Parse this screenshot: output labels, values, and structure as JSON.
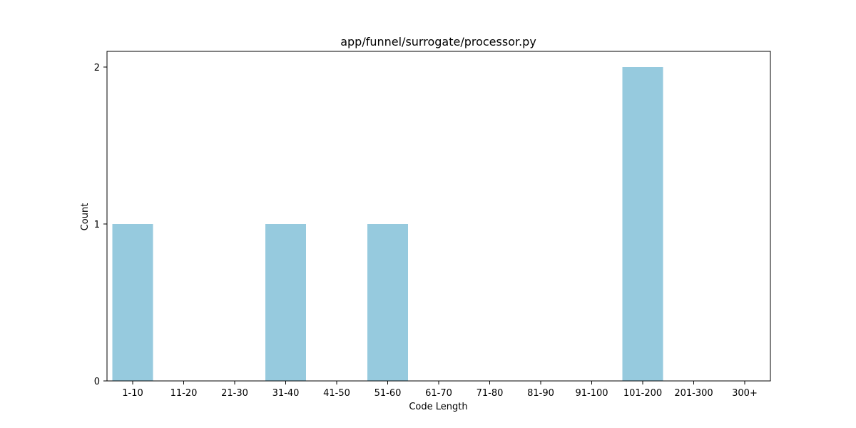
{
  "chart_data": {
    "type": "bar",
    "title": "app/funnel/surrogate/processor.py",
    "xlabel": "Code Length",
    "ylabel": "Count",
    "categories": [
      "1-10",
      "11-20",
      "21-30",
      "31-40",
      "41-50",
      "51-60",
      "61-70",
      "71-80",
      "81-90",
      "91-100",
      "101-200",
      "201-300",
      "300+"
    ],
    "values": [
      1,
      0,
      0,
      1,
      0,
      1,
      0,
      0,
      0,
      0,
      2,
      0,
      0
    ],
    "ylim": [
      0,
      2.1
    ],
    "yticks": [
      "0",
      "1",
      "2"
    ],
    "grid": false,
    "legend": "none",
    "bar_color": "#96CADE"
  }
}
